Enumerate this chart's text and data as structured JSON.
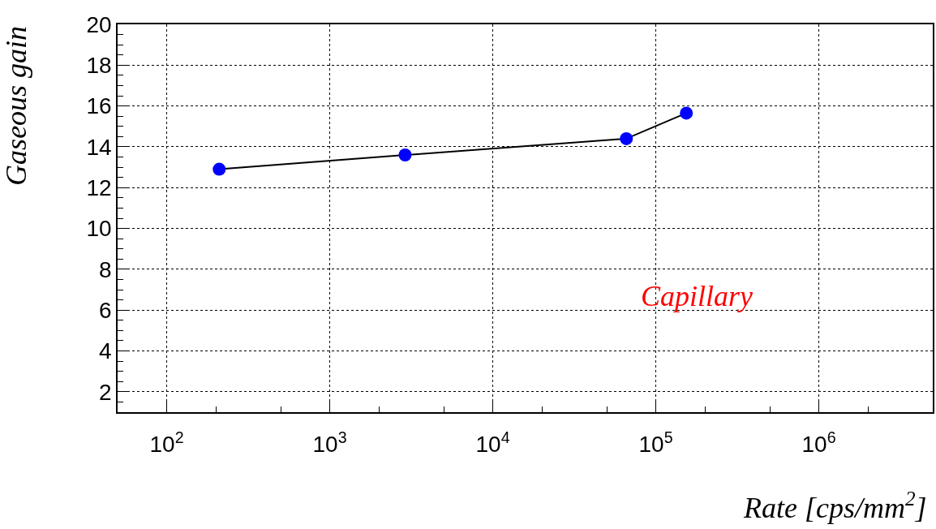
{
  "chart_data": {
    "type": "line",
    "xlabel": "Rate [cps/mm$^{2}$]",
    "ylabel": "Gaseous gain",
    "annotations": [
      "Capillary"
    ],
    "x": [
      210,
      2900,
      66000,
      154000
    ],
    "series": [
      {
        "color": "#0000ff",
        "values": [
          12.9,
          13.6,
          14.4,
          15.65
        ]
      }
    ],
    "log": "x",
    "xlim": [
      50,
      5000000
    ],
    "xticks": [
      {
        "value": 100,
        "label": "10$^{2}$"
      },
      {
        "value": 1000,
        "label": "10$^{3}$"
      },
      {
        "value": 10000,
        "label": "10$^{4}$"
      },
      {
        "value": 100000,
        "label": "10$^{5}$"
      },
      {
        "value": 1000000,
        "label": "10$^{6}$"
      }
    ],
    "ylim": [
      1,
      20
    ],
    "yticks": [
      2,
      4,
      6,
      8,
      10,
      12,
      14,
      16,
      18,
      20
    ],
    "grid": true,
    "marker": "circle",
    "line_style": "solid"
  }
}
